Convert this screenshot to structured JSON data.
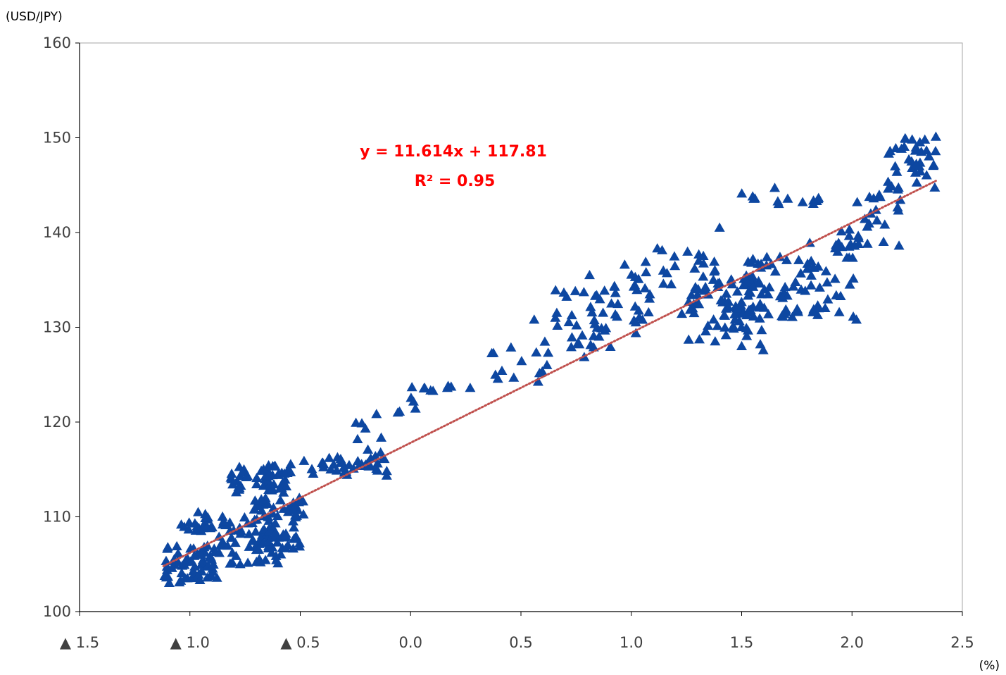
{
  "chart_data": {
    "type": "scatter",
    "title": "",
    "xlabel": "(%)",
    "ylabel": "(USD/JPY)",
    "xlim": [
      -1.5,
      2.5
    ],
    "ylim": [
      100,
      160
    ],
    "x_ticks": [
      -1.5,
      -1.0,
      -0.5,
      0.0,
      0.5,
      1.0,
      1.5,
      2.0,
      2.5
    ],
    "x_tick_labels": [
      "▲ 1.5",
      "▲ 1.0",
      "▲ 0.5",
      "0.0",
      "0.5",
      "1.0",
      "1.5",
      "2.0",
      "2.5"
    ],
    "y_ticks": [
      100,
      110,
      120,
      130,
      140,
      150,
      160
    ],
    "y_tick_labels": [
      "100",
      "110",
      "120",
      "130",
      "140",
      "150",
      "160"
    ],
    "grid": false,
    "legend": "none",
    "marker": "triangle",
    "marker_color": "#0d47a1",
    "trendline": {
      "style": "dotted",
      "color": "#c0504d",
      "slope": 11.614,
      "intercept": 117.81,
      "x_range": [
        -1.12,
        2.38
      ],
      "equation_label": "y = 11.614x + 117.81",
      "r2_label": "R² = 0.95"
    },
    "clusters": [
      {
        "x": [
          -1.12,
          -0.85
        ],
        "y": [
          103,
          107
        ],
        "n": 65
      },
      {
        "x": [
          -1.05,
          -0.72
        ],
        "y": [
          108.5,
          110.5
        ],
        "n": 30
      },
      {
        "x": [
          -0.95,
          -0.55
        ],
        "y": [
          105,
          109
        ],
        "n": 40
      },
      {
        "x": [
          -0.72,
          -0.48
        ],
        "y": [
          106.5,
          112
        ],
        "n": 70
      },
      {
        "x": [
          -0.82,
          -0.55
        ],
        "y": [
          112.5,
          115.5
        ],
        "n": 50
      },
      {
        "x": [
          -0.58,
          -0.38
        ],
        "y": [
          114.5,
          116
        ],
        "n": 10
      },
      {
        "x": [
          -0.38,
          -0.1
        ],
        "y": [
          114,
          116.5
        ],
        "n": 30
      },
      {
        "x": [
          -0.25,
          -0.05
        ],
        "y": [
          115,
          121
        ],
        "n": 12
      },
      {
        "x": [
          0.0,
          0.25
        ],
        "y": [
          121,
          124
        ],
        "n": 10
      },
      {
        "x": [
          0.35,
          0.62
        ],
        "y": [
          123.5,
          129
        ],
        "n": 14
      },
      {
        "x": [
          0.62,
          0.85
        ],
        "y": [
          126.5,
          134
        ],
        "n": 22
      },
      {
        "x": [
          0.8,
          1.05
        ],
        "y": [
          127,
          136.5
        ],
        "n": 30
      },
      {
        "x": [
          1.0,
          1.3
        ],
        "y": [
          130.5,
          138.5
        ],
        "n": 25
      },
      {
        "x": [
          1.25,
          1.45
        ],
        "y": [
          128.5,
          138
        ],
        "n": 35
      },
      {
        "x": [
          1.4,
          1.6
        ],
        "y": [
          127.5,
          135.5
        ],
        "n": 40
      },
      {
        "x": [
          1.52,
          1.85
        ],
        "y": [
          131,
          137.5
        ],
        "n": 60
      },
      {
        "x": [
          1.5,
          1.85
        ],
        "y": [
          143,
          144.5
        ],
        "n": 12
      },
      {
        "x": [
          1.8,
          2.02
        ],
        "y": [
          131,
          139
        ],
        "n": 25
      },
      {
        "x": [
          1.95,
          2.22
        ],
        "y": [
          138.5,
          144
        ],
        "n": 25
      },
      {
        "x": [
          2.15,
          2.38
        ],
        "y": [
          144,
          150
        ],
        "n": 35
      }
    ],
    "points": [
      {
        "x": 1.4,
        "y": 140.5
      },
      {
        "x": 1.55,
        "y": 143.8
      },
      {
        "x": 1.65,
        "y": 144.7
      },
      {
        "x": 2.38,
        "y": 150.1
      },
      {
        "x": 2.33,
        "y": 149.8
      },
      {
        "x": 0.56,
        "y": 130.8
      },
      {
        "x": 0.97,
        "y": 136.6
      },
      {
        "x": -0.05,
        "y": 121.1
      },
      {
        "x": 2.02,
        "y": 130.8
      },
      {
        "x": 1.99,
        "y": 134.5
      },
      {
        "x": 1.5,
        "y": 128
      },
      {
        "x": 1.38,
        "y": 128.5
      },
      {
        "x": 2.07,
        "y": 138.8
      },
      {
        "x": 0.17,
        "y": 123.8
      },
      {
        "x": 0.27,
        "y": 123.6
      }
    ]
  },
  "colors": {
    "axis": "#000000",
    "tick_text": "#404040",
    "equation": "#ff0000"
  }
}
